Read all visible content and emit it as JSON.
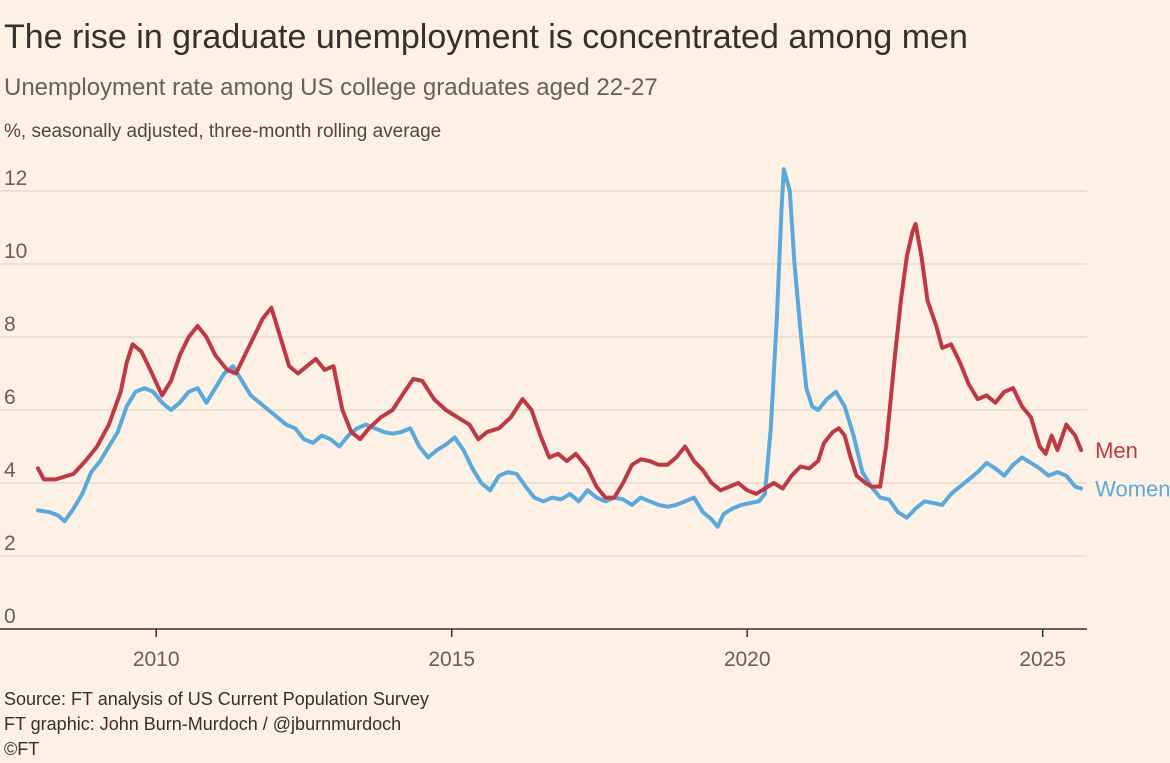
{
  "title": "The rise in graduate unemployment is concentrated among men",
  "subtitle": "Unemployment rate among US college graduates aged 22-27",
  "units": "%, seasonally adjusted, three-month rolling average",
  "footer": {
    "source": "Source: FT analysis of US Current Population Survey",
    "graphic": "FT graphic: John Burn-Murdoch / @jburnmurdoch",
    "copyright": "©FT"
  },
  "colors": {
    "men": "#bd3a45",
    "women": "#5ba9dc",
    "grid": "#e6dbd0",
    "axis": "#33302e"
  },
  "chart_data": {
    "type": "line",
    "title": "The rise in graduate unemployment is concentrated among men",
    "xlabel": "",
    "ylabel": "%",
    "xlim": [
      2008.0,
      2025.65
    ],
    "ylim": [
      0,
      12.6
    ],
    "yticks": [
      0,
      2,
      4,
      6,
      8,
      10,
      12
    ],
    "xticks": [
      2010,
      2015,
      2020,
      2025
    ],
    "grid": true,
    "legend": "direct labels at line ends",
    "series": [
      {
        "name": "Men",
        "points": [
          [
            2008.0,
            4.4
          ],
          [
            2008.1,
            4.1
          ],
          [
            2008.3,
            4.1
          ],
          [
            2008.6,
            4.25
          ],
          [
            2008.8,
            4.6
          ],
          [
            2009.0,
            5.0
          ],
          [
            2009.2,
            5.6
          ],
          [
            2009.4,
            6.5
          ],
          [
            2009.5,
            7.3
          ],
          [
            2009.6,
            7.8
          ],
          [
            2009.75,
            7.6
          ],
          [
            2009.9,
            7.1
          ],
          [
            2010.1,
            6.4
          ],
          [
            2010.25,
            6.8
          ],
          [
            2010.4,
            7.5
          ],
          [
            2010.55,
            8.0
          ],
          [
            2010.7,
            8.3
          ],
          [
            2010.85,
            8.0
          ],
          [
            2011.0,
            7.5
          ],
          [
            2011.2,
            7.1
          ],
          [
            2011.35,
            7.0
          ],
          [
            2011.5,
            7.5
          ],
          [
            2011.65,
            8.0
          ],
          [
            2011.8,
            8.5
          ],
          [
            2011.95,
            8.8
          ],
          [
            2012.1,
            8.0
          ],
          [
            2012.25,
            7.2
          ],
          [
            2012.4,
            7.0
          ],
          [
            2012.55,
            7.2
          ],
          [
            2012.7,
            7.4
          ],
          [
            2012.85,
            7.1
          ],
          [
            2013.0,
            7.2
          ],
          [
            2013.15,
            6.0
          ],
          [
            2013.3,
            5.4
          ],
          [
            2013.45,
            5.2
          ],
          [
            2013.6,
            5.5
          ],
          [
            2013.8,
            5.8
          ],
          [
            2014.0,
            6.0
          ],
          [
            2014.2,
            6.5
          ],
          [
            2014.35,
            6.85
          ],
          [
            2014.5,
            6.8
          ],
          [
            2014.7,
            6.3
          ],
          [
            2014.9,
            6.0
          ],
          [
            2015.1,
            5.8
          ],
          [
            2015.3,
            5.6
          ],
          [
            2015.45,
            5.2
          ],
          [
            2015.6,
            5.4
          ],
          [
            2015.8,
            5.5
          ],
          [
            2016.0,
            5.8
          ],
          [
            2016.2,
            6.3
          ],
          [
            2016.35,
            6.0
          ],
          [
            2016.5,
            5.3
          ],
          [
            2016.65,
            4.7
          ],
          [
            2016.8,
            4.8
          ],
          [
            2016.95,
            4.6
          ],
          [
            2017.1,
            4.8
          ],
          [
            2017.3,
            4.4
          ],
          [
            2017.45,
            3.9
          ],
          [
            2017.6,
            3.6
          ],
          [
            2017.75,
            3.6
          ],
          [
            2017.9,
            4.0
          ],
          [
            2018.05,
            4.5
          ],
          [
            2018.2,
            4.65
          ],
          [
            2018.35,
            4.6
          ],
          [
            2018.5,
            4.5
          ],
          [
            2018.65,
            4.5
          ],
          [
            2018.8,
            4.7
          ],
          [
            2018.95,
            5.0
          ],
          [
            2019.1,
            4.6
          ],
          [
            2019.25,
            4.35
          ],
          [
            2019.4,
            4.0
          ],
          [
            2019.55,
            3.8
          ],
          [
            2019.7,
            3.9
          ],
          [
            2019.85,
            4.0
          ],
          [
            2020.0,
            3.8
          ],
          [
            2020.15,
            3.7
          ],
          [
            2020.3,
            3.85
          ],
          [
            2020.45,
            4.0
          ],
          [
            2020.6,
            3.85
          ],
          [
            2020.75,
            4.2
          ],
          [
            2020.9,
            4.45
          ],
          [
            2021.05,
            4.4
          ],
          [
            2021.2,
            4.6
          ],
          [
            2021.3,
            5.1
          ],
          [
            2021.45,
            5.4
          ],
          [
            2021.55,
            5.5
          ],
          [
            2021.65,
            5.3
          ],
          [
            2021.75,
            4.7
          ],
          [
            2021.85,
            4.2
          ],
          [
            2022.0,
            4.0
          ],
          [
            2022.1,
            3.9
          ],
          [
            2022.25,
            3.9
          ],
          [
            2022.35,
            5.0
          ],
          [
            2022.5,
            7.5
          ],
          [
            2022.6,
            9.0
          ],
          [
            2022.7,
            10.2
          ],
          [
            2022.8,
            10.9
          ],
          [
            2022.85,
            11.1
          ],
          [
            2022.95,
            10.2
          ],
          [
            2023.05,
            9.0
          ],
          [
            2023.2,
            8.3
          ],
          [
            2023.3,
            7.7
          ],
          [
            2023.45,
            7.8
          ],
          [
            2023.6,
            7.3
          ],
          [
            2023.75,
            6.7
          ],
          [
            2023.9,
            6.3
          ],
          [
            2024.05,
            6.4
          ],
          [
            2024.2,
            6.2
          ],
          [
            2024.35,
            6.5
          ],
          [
            2024.5,
            6.6
          ],
          [
            2024.65,
            6.1
          ],
          [
            2024.8,
            5.8
          ],
          [
            2024.95,
            5.0
          ],
          [
            2025.05,
            4.8
          ],
          [
            2025.15,
            5.3
          ],
          [
            2025.25,
            4.9
          ],
          [
            2025.4,
            5.6
          ],
          [
            2025.55,
            5.3
          ],
          [
            2025.65,
            4.9
          ]
        ]
      },
      {
        "name": "Women",
        "points": [
          [
            2008.0,
            3.25
          ],
          [
            2008.2,
            3.2
          ],
          [
            2008.35,
            3.1
          ],
          [
            2008.45,
            2.95
          ],
          [
            2008.6,
            3.3
          ],
          [
            2008.75,
            3.7
          ],
          [
            2008.9,
            4.3
          ],
          [
            2009.05,
            4.6
          ],
          [
            2009.2,
            5.0
          ],
          [
            2009.35,
            5.4
          ],
          [
            2009.5,
            6.1
          ],
          [
            2009.65,
            6.5
          ],
          [
            2009.8,
            6.6
          ],
          [
            2009.95,
            6.5
          ],
          [
            2010.1,
            6.2
          ],
          [
            2010.25,
            6.0
          ],
          [
            2010.4,
            6.2
          ],
          [
            2010.55,
            6.5
          ],
          [
            2010.7,
            6.6
          ],
          [
            2010.85,
            6.2
          ],
          [
            2011.0,
            6.6
          ],
          [
            2011.15,
            7.0
          ],
          [
            2011.3,
            7.2
          ],
          [
            2011.45,
            6.8
          ],
          [
            2011.6,
            6.4
          ],
          [
            2011.75,
            6.2
          ],
          [
            2011.9,
            6.0
          ],
          [
            2012.05,
            5.8
          ],
          [
            2012.2,
            5.6
          ],
          [
            2012.35,
            5.5
          ],
          [
            2012.5,
            5.2
          ],
          [
            2012.65,
            5.1
          ],
          [
            2012.8,
            5.3
          ],
          [
            2012.95,
            5.2
          ],
          [
            2013.1,
            5.0
          ],
          [
            2013.25,
            5.3
          ],
          [
            2013.4,
            5.5
          ],
          [
            2013.55,
            5.6
          ],
          [
            2013.7,
            5.5
          ],
          [
            2013.85,
            5.4
          ],
          [
            2014.0,
            5.35
          ],
          [
            2014.15,
            5.4
          ],
          [
            2014.3,
            5.5
          ],
          [
            2014.45,
            5.0
          ],
          [
            2014.6,
            4.7
          ],
          [
            2014.75,
            4.9
          ],
          [
            2014.9,
            5.05
          ],
          [
            2015.05,
            5.25
          ],
          [
            2015.2,
            4.9
          ],
          [
            2015.35,
            4.4
          ],
          [
            2015.5,
            4.0
          ],
          [
            2015.65,
            3.8
          ],
          [
            2015.8,
            4.2
          ],
          [
            2015.95,
            4.3
          ],
          [
            2016.1,
            4.25
          ],
          [
            2016.25,
            3.9
          ],
          [
            2016.4,
            3.6
          ],
          [
            2016.55,
            3.5
          ],
          [
            2016.7,
            3.6
          ],
          [
            2016.85,
            3.55
          ],
          [
            2017.0,
            3.7
          ],
          [
            2017.15,
            3.5
          ],
          [
            2017.3,
            3.8
          ],
          [
            2017.45,
            3.6
          ],
          [
            2017.6,
            3.5
          ],
          [
            2017.75,
            3.6
          ],
          [
            2017.9,
            3.55
          ],
          [
            2018.05,
            3.4
          ],
          [
            2018.2,
            3.6
          ],
          [
            2018.35,
            3.5
          ],
          [
            2018.5,
            3.4
          ],
          [
            2018.65,
            3.35
          ],
          [
            2018.8,
            3.4
          ],
          [
            2018.95,
            3.5
          ],
          [
            2019.1,
            3.6
          ],
          [
            2019.25,
            3.2
          ],
          [
            2019.4,
            3.0
          ],
          [
            2019.5,
            2.8
          ],
          [
            2019.6,
            3.15
          ],
          [
            2019.75,
            3.3
          ],
          [
            2019.9,
            3.4
          ],
          [
            2020.05,
            3.45
          ],
          [
            2020.2,
            3.5
          ],
          [
            2020.3,
            3.7
          ],
          [
            2020.4,
            5.5
          ],
          [
            2020.5,
            8.5
          ],
          [
            2020.58,
            11.5
          ],
          [
            2020.62,
            12.6
          ],
          [
            2020.72,
            12.0
          ],
          [
            2020.8,
            10.0
          ],
          [
            2020.9,
            8.2
          ],
          [
            2021.0,
            6.6
          ],
          [
            2021.1,
            6.1
          ],
          [
            2021.2,
            6.0
          ],
          [
            2021.35,
            6.3
          ],
          [
            2021.5,
            6.5
          ],
          [
            2021.65,
            6.1
          ],
          [
            2021.8,
            5.3
          ],
          [
            2021.95,
            4.3
          ],
          [
            2022.1,
            3.9
          ],
          [
            2022.25,
            3.6
          ],
          [
            2022.4,
            3.55
          ],
          [
            2022.55,
            3.2
          ],
          [
            2022.7,
            3.05
          ],
          [
            2022.85,
            3.3
          ],
          [
            2023.0,
            3.5
          ],
          [
            2023.15,
            3.45
          ],
          [
            2023.3,
            3.4
          ],
          [
            2023.45,
            3.7
          ],
          [
            2023.6,
            3.9
          ],
          [
            2023.75,
            4.1
          ],
          [
            2023.9,
            4.3
          ],
          [
            2024.05,
            4.55
          ],
          [
            2024.2,
            4.4
          ],
          [
            2024.35,
            4.2
          ],
          [
            2024.5,
            4.5
          ],
          [
            2024.65,
            4.7
          ],
          [
            2024.8,
            4.55
          ],
          [
            2024.95,
            4.4
          ],
          [
            2025.1,
            4.2
          ],
          [
            2025.25,
            4.3
          ],
          [
            2025.4,
            4.2
          ],
          [
            2025.55,
            3.9
          ],
          [
            2025.65,
            3.85
          ]
        ]
      }
    ]
  }
}
